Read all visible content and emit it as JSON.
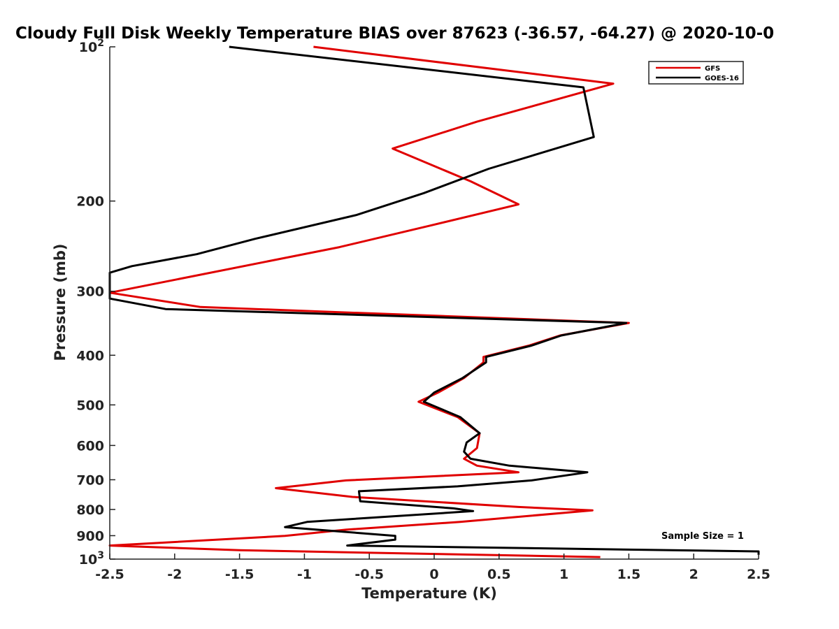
{
  "chart_data": {
    "type": "line",
    "title": "Cloudy Full Disk Weekly Temperature BIAS over 87623 (-36.57, -64.27) @ 2020-10-0",
    "xlabel": "Temperature (K)",
    "ylabel": "Pressure (mb)",
    "xlim": [
      -2.5,
      2.5
    ],
    "ylim": [
      100,
      1000
    ],
    "y_scale": "log",
    "y_reversed": true,
    "grid": false,
    "legend_position": "top-right",
    "x_ticks": [
      "-2.5",
      "-2",
      "-1.5",
      "-1",
      "-0.5",
      "0",
      "0.5",
      "1",
      "1.5",
      "2",
      "2.5"
    ],
    "x_tick_values": [
      -2.5,
      -2,
      -1.5,
      -1,
      -0.5,
      0,
      0.5,
      1,
      1.5,
      2,
      2.5
    ],
    "y_ticks": [
      {
        "value": 100,
        "base": "10",
        "exp": "2"
      },
      {
        "value": 200,
        "label": "200"
      },
      {
        "value": 300,
        "label": "300"
      },
      {
        "value": 400,
        "label": "400"
      },
      {
        "value": 500,
        "label": "500"
      },
      {
        "value": 600,
        "label": "600"
      },
      {
        "value": 700,
        "label": "700"
      },
      {
        "value": 800,
        "label": "800"
      },
      {
        "value": 900,
        "label": "900"
      },
      {
        "value": 1000,
        "base": "10",
        "exp": "3"
      }
    ],
    "series": [
      {
        "name": "GFS",
        "color": "#e00000",
        "points": [
          [
            -0.93,
            100
          ],
          [
            1.38,
            118
          ],
          [
            0.33,
            140
          ],
          [
            -0.32,
            158
          ],
          [
            0.28,
            183
          ],
          [
            0.65,
            203
          ],
          [
            -0.02,
            223
          ],
          [
            -0.73,
            246
          ],
          [
            -2.5,
            302
          ],
          [
            -1.8,
            322
          ],
          [
            1.5,
            346
          ],
          [
            0.97,
            366
          ],
          [
            0.73,
            383
          ],
          [
            0.38,
            403
          ],
          [
            0.38,
            413
          ],
          [
            0.23,
            443
          ],
          [
            0.03,
            473
          ],
          [
            -0.12,
            493
          ],
          [
            0.18,
            528
          ],
          [
            0.35,
            568
          ],
          [
            0.33,
            607
          ],
          [
            0.23,
            637
          ],
          [
            0.33,
            657
          ],
          [
            0.65,
            677
          ],
          [
            -0.68,
            702
          ],
          [
            -1.22,
            727
          ],
          [
            -0.63,
            756
          ],
          [
            0.65,
            791
          ],
          [
            1.22,
            803
          ],
          [
            0.2,
            846
          ],
          [
            -0.68,
            876
          ],
          [
            -1.15,
            901
          ],
          [
            -2.5,
            941
          ],
          [
            -1.5,
            961
          ],
          [
            1.28,
            991
          ]
        ]
      },
      {
        "name": "GOES-16",
        "color": "#000000",
        "points": [
          [
            -1.58,
            100
          ],
          [
            1.15,
            120
          ],
          [
            1.23,
            150
          ],
          [
            0.42,
            173
          ],
          [
            -0.08,
            193
          ],
          [
            -0.6,
            213
          ],
          [
            -1.38,
            237
          ],
          [
            -1.83,
            254
          ],
          [
            -2.33,
            268
          ],
          [
            -2.5,
            276
          ],
          [
            -2.5,
            310
          ],
          [
            -2.07,
            325
          ],
          [
            1.48,
            346
          ],
          [
            0.98,
            366
          ],
          [
            0.75,
            383
          ],
          [
            0.4,
            403
          ],
          [
            0.4,
            413
          ],
          [
            0.22,
            443
          ],
          [
            0.0,
            473
          ],
          [
            -0.08,
            493
          ],
          [
            0.2,
            528
          ],
          [
            0.35,
            568
          ],
          [
            0.25,
            592
          ],
          [
            0.23,
            617
          ],
          [
            0.28,
            637
          ],
          [
            0.58,
            657
          ],
          [
            1.18,
            677
          ],
          [
            0.75,
            702
          ],
          [
            0.18,
            721
          ],
          [
            -0.58,
            737
          ],
          [
            -0.57,
            771
          ],
          [
            0.15,
            796
          ],
          [
            0.3,
            806
          ],
          [
            -0.98,
            846
          ],
          [
            -1.15,
            866
          ],
          [
            -0.3,
            901
          ],
          [
            -0.3,
            916
          ],
          [
            -0.67,
            941
          ],
          [
            2.5,
            966
          ],
          [
            2.5,
            981
          ]
        ]
      }
    ],
    "annotation": "Sample Size = 1"
  }
}
